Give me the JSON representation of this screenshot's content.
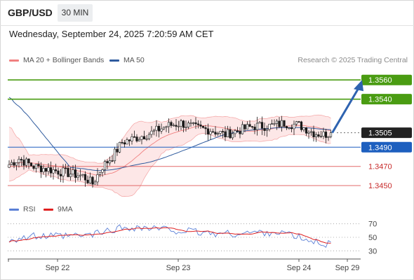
{
  "header": {
    "symbol": "GBP/USD",
    "interval": "30 MIN",
    "datetime": "Wednesday, September 24, 2025 7:20:59 AM CET"
  },
  "copyright": "Research © 2025 Trading Central",
  "colors": {
    "bollinger": "#f08080",
    "bollinger_fill": "#fde3e3",
    "ma50": "#2f5b9e",
    "resistance": "#4a9c12",
    "pivot": "#1d5fbf",
    "support": "#e36a6a",
    "current": "#222222",
    "rsi": "#5a7fd6",
    "rsi_ma": "#e02020",
    "up_candle": "#ffffff",
    "down_candle": "#1a1a1a",
    "arrow": "#2e63b0"
  },
  "chart_data": [
    {
      "type": "candlestick",
      "title": "GBP/USD",
      "legend": [
        "MA 20 + Bollinger Bands",
        "MA 50"
      ],
      "x_tick_labels": [
        "Sep 22",
        "Sep 23",
        "Sep 24",
        "Sep 29"
      ],
      "ylim": [
        1.3437,
        1.3574
      ],
      "levels": [
        {
          "value": 1.356,
          "label": "1.3560",
          "kind": "resistance"
        },
        {
          "value": 1.354,
          "label": "1.3540",
          "kind": "resistance"
        },
        {
          "value": 1.3505,
          "label": "1.3505",
          "kind": "current"
        },
        {
          "value": 1.349,
          "label": "1.3490",
          "kind": "pivot"
        },
        {
          "value": 1.347,
          "label": "1.3470",
          "kind": "support"
        },
        {
          "value": 1.345,
          "label": "1.3450",
          "kind": "support"
        }
      ],
      "close_anchors": [
        [
          0,
          1.3472
        ],
        [
          4,
          1.3478
        ],
        [
          10,
          1.347
        ],
        [
          18,
          1.3466
        ],
        [
          24,
          1.3463
        ],
        [
          30,
          1.346
        ],
        [
          34,
          1.3452
        ],
        [
          38,
          1.347
        ],
        [
          42,
          1.348
        ],
        [
          46,
          1.3495
        ],
        [
          52,
          1.35
        ],
        [
          58,
          1.3505
        ],
        [
          64,
          1.3512
        ],
        [
          70,
          1.3515
        ],
        [
          76,
          1.351
        ],
        [
          82,
          1.3508
        ],
        [
          88,
          1.3503
        ],
        [
          94,
          1.3508
        ],
        [
          100,
          1.3512
        ],
        [
          106,
          1.3512
        ],
        [
          112,
          1.3515
        ],
        [
          118,
          1.3513
        ],
        [
          124,
          1.3505
        ],
        [
          128,
          1.3503
        ],
        [
          131,
          1.3505
        ]
      ],
      "forecast_path": [
        1.3505,
        1.356
      ]
    },
    {
      "type": "line",
      "title": "RSI",
      "legend": [
        "RSI",
        "9MA"
      ],
      "ylim": [
        20,
        80
      ],
      "y_ticks": [
        30,
        50,
        70
      ],
      "rsi_anchors": [
        [
          0,
          47
        ],
        [
          10,
          51
        ],
        [
          20,
          51
        ],
        [
          30,
          52
        ],
        [
          38,
          57
        ],
        [
          44,
          63
        ],
        [
          50,
          65
        ],
        [
          58,
          63
        ],
        [
          66,
          61
        ],
        [
          74,
          58
        ],
        [
          82,
          56
        ],
        [
          90,
          55
        ],
        [
          100,
          57
        ],
        [
          110,
          58
        ],
        [
          116,
          52
        ],
        [
          122,
          44
        ],
        [
          128,
          41
        ],
        [
          131,
          40
        ]
      ]
    }
  ]
}
